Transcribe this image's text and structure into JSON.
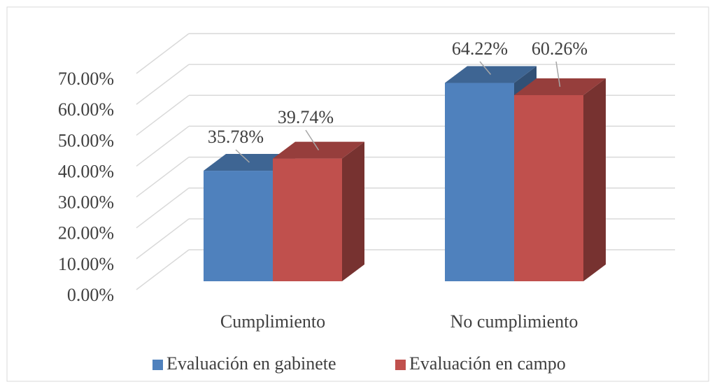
{
  "chart_data": {
    "type": "bar3d",
    "categories": [
      "Cumplimiento",
      "No cumplimiento"
    ],
    "series": [
      {
        "name": "Evaluación en gabinete",
        "color": "#4f81bd",
        "values": [
          35.78,
          64.22
        ],
        "value_labels": [
          "35.78%",
          "64.22%"
        ]
      },
      {
        "name": "Evaluación en campo",
        "color": "#c0504d",
        "values": [
          39.74,
          60.26
        ],
        "value_labels": [
          "39.74%",
          "60.26%"
        ]
      }
    ],
    "ylim": [
      0,
      70
    ],
    "yticks": [
      {
        "value": 0,
        "label": "0.00%"
      },
      {
        "value": 10,
        "label": "10.00%"
      },
      {
        "value": 20,
        "label": "20.00%"
      },
      {
        "value": 30,
        "label": "30.00%"
      },
      {
        "value": 40,
        "label": "40.00%"
      },
      {
        "value": 50,
        "label": "50.00%"
      },
      {
        "value": 60,
        "label": "60.00%"
      },
      {
        "value": 70,
        "label": "70.00%"
      }
    ],
    "grid": true,
    "legend": "bottom"
  }
}
